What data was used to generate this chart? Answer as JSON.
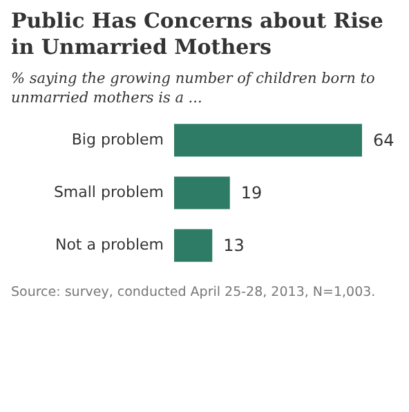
{
  "chart_data": {
    "type": "bar",
    "orientation": "horizontal",
    "title": "Public Has Concerns about Rise in Unmarried Mothers",
    "subtitle": "% saying the growing number of children born to unmarried mothers is a ...",
    "categories": [
      "Big problem",
      "Small problem",
      "Not a problem"
    ],
    "values": [
      64,
      19,
      13
    ],
    "color": "#2e7b66",
    "data_labels": true,
    "annotations": [
      "Source: survey, conducted April 25-28, 2013, N=1,003."
    ]
  }
}
